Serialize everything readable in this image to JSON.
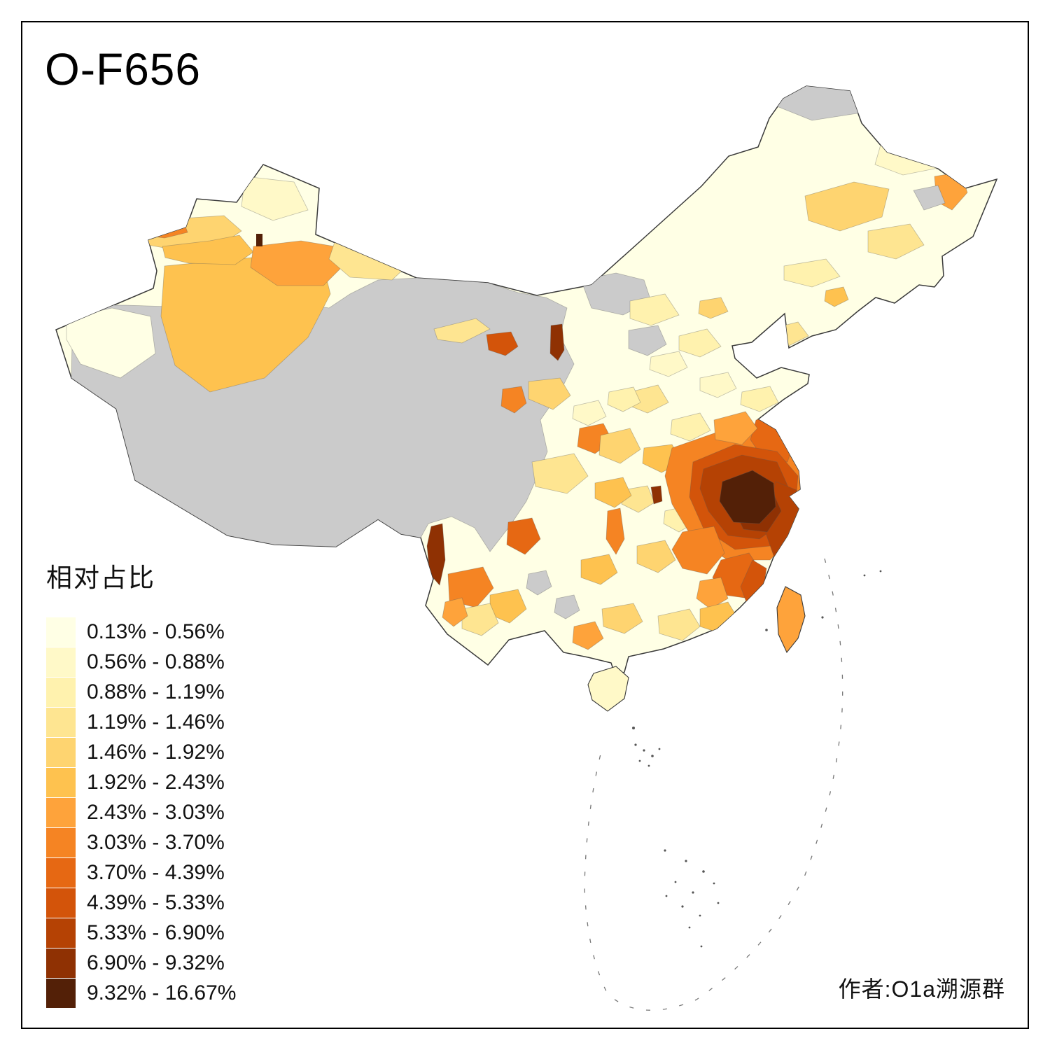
{
  "title": "O-F656",
  "legend": {
    "title": "相对占比",
    "bins": [
      {
        "label": "0.13% - 0.56%",
        "color": "#FFFFE5"
      },
      {
        "label": "0.56% - 0.88%",
        "color": "#FFF9C8"
      },
      {
        "label": "0.88% - 1.19%",
        "color": "#FFF2AE"
      },
      {
        "label": "1.19% - 1.46%",
        "color": "#FEE591"
      },
      {
        "label": "1.46% - 1.92%",
        "color": "#FED470"
      },
      {
        "label": "1.92% - 2.43%",
        "color": "#FEC24F"
      },
      {
        "label": "2.43% - 3.03%",
        "color": "#FEA33B"
      },
      {
        "label": "3.03% - 3.70%",
        "color": "#F58423"
      },
      {
        "label": "3.70% - 4.39%",
        "color": "#E66813"
      },
      {
        "label": "4.39% - 5.33%",
        "color": "#D3540A"
      },
      {
        "label": "5.33% - 6.90%",
        "color": "#B54204"
      },
      {
        "label": "6.90% - 9.32%",
        "color": "#8F3103"
      },
      {
        "label": "9.32% - 16.67%",
        "color": "#532007"
      }
    ]
  },
  "map": {
    "no_data_color": "#CBCBCB",
    "land_border_color": "#3a3a3a"
  },
  "credit": "作者:O1a溯源群"
}
